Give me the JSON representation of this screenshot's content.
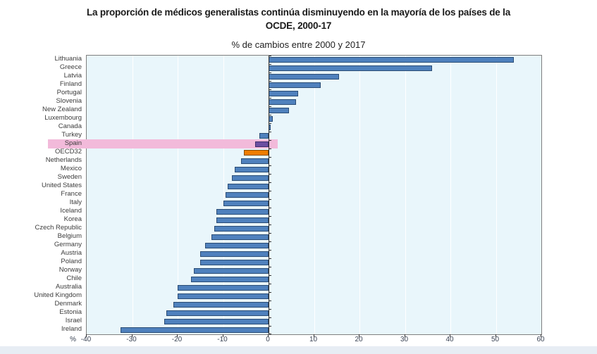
{
  "title_line1": "La proporción de médicos generalistas continúa disminuyendo en la mayoría de los países de la",
  "title_line2": "OCDE, 2000-17",
  "subtitle": "% de cambios entre 2000 y 2017",
  "x_axis": {
    "percent_prefix": "%",
    "tick_labels": [
      "-40",
      "-30",
      "-20",
      "-10",
      "0",
      "10",
      "20",
      "30",
      "40",
      "50",
      "60"
    ]
  },
  "chart_data": {
    "type": "bar",
    "orientation": "horizontal",
    "title": "La proporción de médicos generalistas continúa disminuyendo en la mayoría de los países de la OCDE, 2000-17",
    "subtitle": "% de cambios entre 2000 y 2017",
    "xlabel": "% de cambios entre 2000 y 2017",
    "xlim": [
      -40,
      60
    ],
    "xticks": [
      -40,
      -30,
      -20,
      -10,
      0,
      10,
      20,
      30,
      40,
      50,
      60
    ],
    "grid": true,
    "legend": "none",
    "categories": [
      "Lithuania",
      "Greece",
      "Latvia",
      "Finland",
      "Portugal",
      "Slovenia",
      "New Zealand",
      "Luxembourg",
      "Canada",
      "Turkey",
      "Spain",
      "OECD32",
      "Netherlands",
      "Mexico",
      "Sweden",
      "United States",
      "France",
      "Italy",
      "Iceland",
      "Korea",
      "Czech Republic",
      "Belgium",
      "Germany",
      "Austria",
      "Poland",
      "Norway",
      "Chile",
      "Australia",
      "United Kingdom",
      "Denmark",
      "Estonia",
      "Israel",
      "Ireland"
    ],
    "values": [
      54,
      36,
      15.5,
      11.5,
      6.5,
      6,
      4.5,
      1,
      0.5,
      -2,
      -3,
      -5.5,
      -6,
      -7.5,
      -8,
      -9,
      -9.5,
      -10,
      -11.5,
      -11.5,
      -12,
      -12.5,
      -14,
      -15,
      -15,
      -16.5,
      -17,
      -20,
      -20,
      -21,
      -22.5,
      -23,
      -32.5
    ],
    "special_styles": {
      "Spain": "spain",
      "OECD32": "oecd"
    },
    "highlight_band": {
      "category": "Spain",
      "color": "#f2bada"
    },
    "colors": {
      "default_fill": "#4f81bd",
      "default_border": "#2b4d75",
      "spain_fill": "#6b4fa1",
      "spain_border": "#3f2d6b",
      "oecd_fill": "#ee7d00",
      "oecd_border": "#8a4f00",
      "plot_bg": "#e9f6fb",
      "gridline": "#ffffff",
      "zero_line": "#303030",
      "footer_strip": "#e7edf4"
    }
  }
}
